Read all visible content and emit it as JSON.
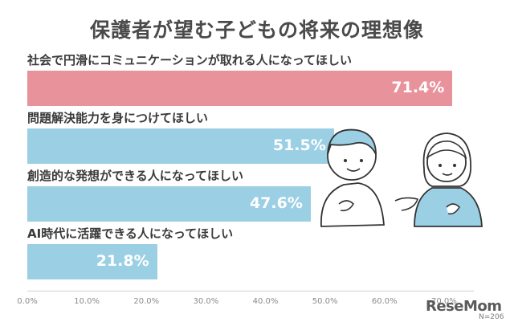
{
  "chart_data": {
    "type": "bar",
    "orientation": "horizontal",
    "title": "保護者が望む子どもの将来の理想像",
    "categories": [
      "社会で円滑にコミュニケーションが取れる人になってほしい",
      "問題解決能力を身につけてほしい",
      "創造的な発想ができる人になってほしい",
      "AI時代に活躍できる人になってほしい"
    ],
    "values": [
      71.4,
      51.5,
      47.6,
      21.8
    ],
    "value_labels": [
      "71.4%",
      "51.5%",
      "47.6%",
      "21.8%"
    ],
    "bar_colors": [
      "#e8929c",
      "#9bcfe4",
      "#9bcfe4",
      "#9bcfe4"
    ],
    "xlim": [
      0,
      75
    ],
    "xticks": [
      "0.0%",
      "10.0%",
      "20.0%",
      "30.0%",
      "40.0%",
      "50.0%",
      "60.0%",
      "70.0%"
    ],
    "xtick_values": [
      0,
      10,
      20,
      30,
      40,
      50,
      60,
      70
    ],
    "xlabel": "",
    "ylabel": ""
  },
  "footer": {
    "logo_main": "ReseMom",
    "sample_size": "N=206"
  },
  "colors": {
    "title": "#4a4a4a",
    "highlight": "#e8929c",
    "base": "#9bcfe4"
  }
}
